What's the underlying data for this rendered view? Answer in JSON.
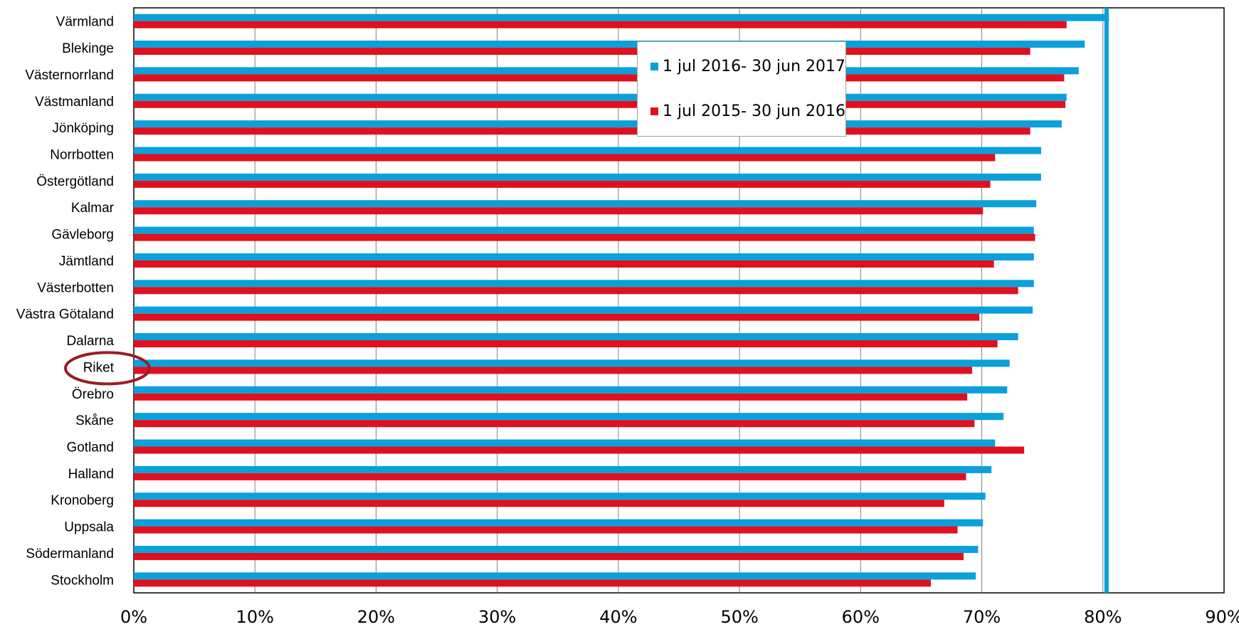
{
  "chart_data": {
    "type": "bar",
    "orientation": "horizontal",
    "categories": [
      "Värmland",
      "Blekinge",
      "Västernorrland",
      "Västmanland",
      "Jönköping",
      "Norrbotten",
      "Östergötland",
      "Kalmar",
      "Gävleborg",
      "Jämtland",
      "Västerbotten",
      "Västra Götaland",
      "Dalarna",
      "Riket",
      "Örebro",
      "Skåne",
      "Gotland",
      "Halland",
      "Kronoberg",
      "Uppsala",
      "Södermanland",
      "Stockholm"
    ],
    "series": [
      {
        "name": "1 jul 2016- 30 jun 2017",
        "color": "#0aa0dc",
        "values": [
          80.5,
          78.5,
          78.0,
          77.0,
          76.6,
          74.9,
          74.9,
          74.5,
          74.3,
          74.3,
          74.3,
          74.2,
          73.0,
          72.3,
          72.1,
          71.8,
          71.1,
          70.8,
          70.3,
          70.1,
          69.7,
          69.5
        ]
      },
      {
        "name": "1 jul 2015- 30 jun 2016",
        "color": "#e0101e",
        "values": [
          77.0,
          74.0,
          76.8,
          76.9,
          74.0,
          71.1,
          70.7,
          70.1,
          74.4,
          71.0,
          73.0,
          69.8,
          71.3,
          69.2,
          68.8,
          69.4,
          73.5,
          68.7,
          66.9,
          68.0,
          68.5,
          65.8
        ]
      }
    ],
    "x_ticks": [
      "0%",
      "10%",
      "20%",
      "30%",
      "40%",
      "50%",
      "60%",
      "70%",
      "80%",
      "90%"
    ],
    "xlim": [
      0,
      90
    ],
    "reference_line": {
      "value": 80.3,
      "color": "#0aa0dc"
    },
    "highlighted_category": "Riket",
    "highlight_color": "#9b1c24",
    "grid": true,
    "legend_position": "top-center",
    "title": "",
    "xlabel": "",
    "ylabel": ""
  }
}
